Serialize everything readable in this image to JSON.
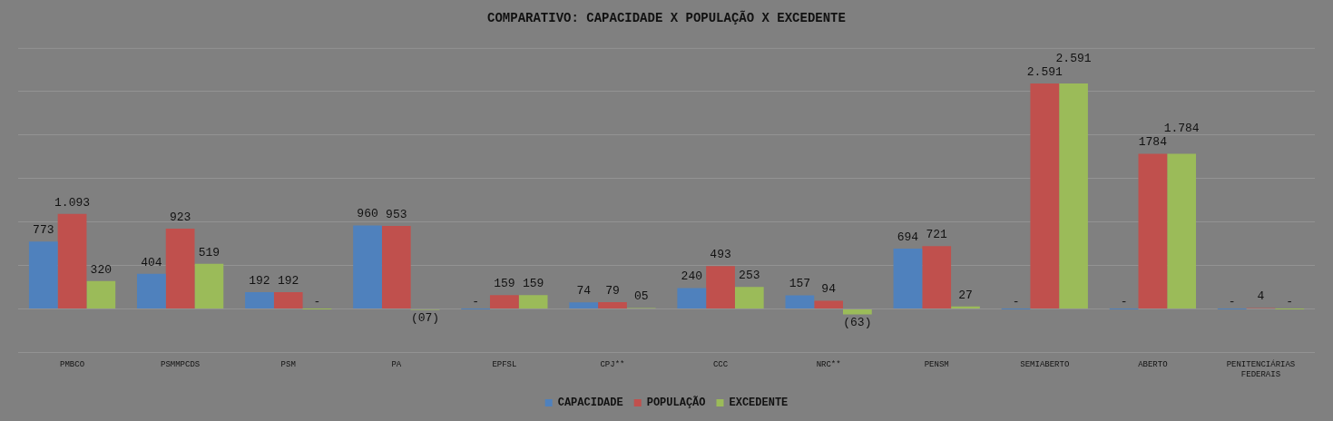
{
  "chart_data": {
    "type": "bar",
    "title": "COMPARATIVO: CAPACIDADE X POPULAÇÃO X EXCEDENTE",
    "categories": [
      "PMBCO",
      "PSMMPCDS",
      "PSM",
      "PA",
      "EPFSL",
      "CPJ**",
      "CCC",
      "NRC**",
      "PENSM",
      "SEMIABERTO",
      "ABERTO",
      "PENITENCIÁRIAS FEDERAIS"
    ],
    "series": [
      {
        "name": "CAPACIDADE",
        "color": "#4f81bd",
        "values": [
          773,
          404,
          192,
          960,
          0,
          74,
          240,
          157,
          694,
          0,
          0,
          0
        ],
        "value_labels": [
          "773",
          "404",
          "192",
          "960",
          "-",
          "74",
          "240",
          "157",
          "694",
          "-",
          "-",
          "-"
        ]
      },
      {
        "name": "POPULAÇÃO",
        "color": "#c0504d",
        "values": [
          1093,
          923,
          192,
          953,
          159,
          79,
          493,
          94,
          721,
          2591,
          1784,
          4
        ],
        "value_labels": [
          "1.093",
          "923",
          "192",
          "953",
          "159",
          "79",
          "493",
          "94",
          "721",
          "2.591",
          "1784",
          "4"
        ]
      },
      {
        "name": "EXCEDENTE",
        "color": "#9bbb59",
        "values": [
          320,
          519,
          0,
          -7,
          159,
          5,
          253,
          -63,
          27,
          2591,
          1784,
          0
        ],
        "value_labels": [
          "320",
          "519",
          "-",
          "(07)",
          "159",
          "05",
          "253",
          "(63)",
          "27",
          "2.591",
          "1.784",
          "-"
        ]
      }
    ],
    "ylim": [
      -500,
      3000
    ],
    "yticks": [
      {
        "value": -500,
        "label": null
      },
      {
        "value": 0,
        "label": null
      },
      {
        "value": 500,
        "label": null
      },
      {
        "value": 1000,
        "label": null
      },
      {
        "value": 1500,
        "label": null
      },
      {
        "value": 2000,
        "label": null
      },
      {
        "value": 2500,
        "label": null
      }
    ],
    "grid": "y",
    "legend": "bottom",
    "tick_labels": "x"
  }
}
